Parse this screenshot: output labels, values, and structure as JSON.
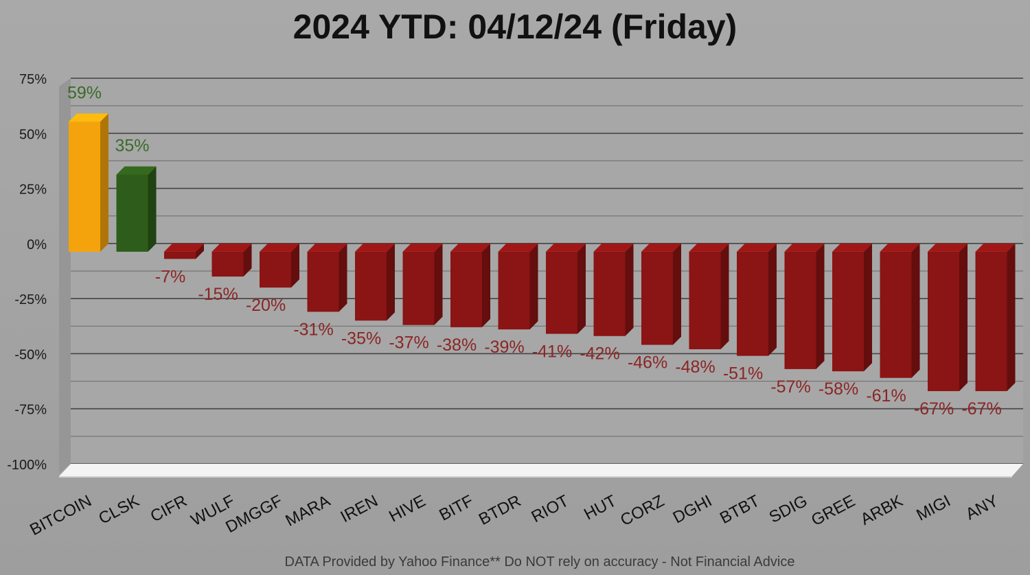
{
  "chart_data": {
    "type": "bar",
    "title": "2024 YTD: 04/12/24 (Friday)",
    "footnote": "DATA Provided by Yahoo Finance** Do NOT rely on accuracy - Not Financial Advice",
    "categories": [
      "BITCOIN",
      "CLSK",
      "CIFR",
      "WULF",
      "DMGGF",
      "MARA",
      "IREN",
      "HIVE",
      "BITF",
      "BTDR",
      "RIOT",
      "HUT",
      "CORZ",
      "DGHI",
      "BTBT",
      "SDIG",
      "GREE",
      "ARBK",
      "MIGI",
      "ANY"
    ],
    "values": [
      59,
      35,
      -7,
      -15,
      -20,
      -31,
      -35,
      -37,
      -38,
      -39,
      -41,
      -42,
      -46,
      -48,
      -51,
      -57,
      -58,
      -61,
      -67,
      -67
    ],
    "value_labels": [
      "59%",
      "35%",
      "-7%",
      "-15%",
      "-20%",
      "-31%",
      "-35%",
      "-37%",
      "-38%",
      "-39%",
      "-41%",
      "-42%",
      "-46%",
      "-48%",
      "-51%",
      "-57%",
      "-58%",
      "-61%",
      "-67%",
      "-67%"
    ],
    "yticks": [
      75,
      50,
      25,
      0,
      -25,
      -50,
      -75,
      -100
    ],
    "ytick_labels": [
      "75%",
      "50%",
      "25%",
      "0%",
      "-25%",
      "-50%",
      "-75%",
      "-100%"
    ],
    "ylim": [
      -100,
      75
    ],
    "grid": true,
    "colors": {
      "bitcoin": "#f5a30c",
      "positive": "#2e5c1a",
      "negative": "#8b1414",
      "positive_label": "#3a6b2a",
      "negative_label": "#8b2525"
    }
  }
}
